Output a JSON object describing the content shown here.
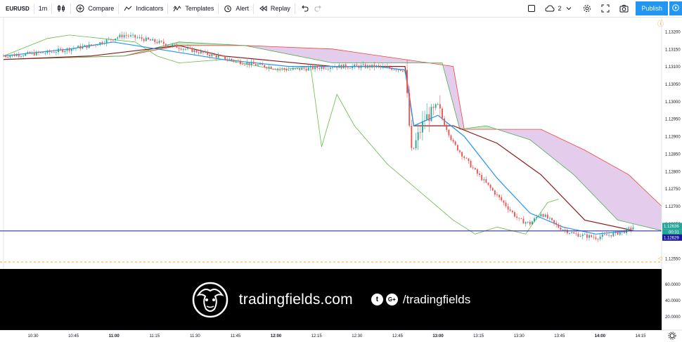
{
  "toolbar": {
    "symbol": "EURUSD",
    "interval": "1m",
    "compare": "Compare",
    "indicators": "Indicators",
    "templates": "Templates",
    "alert": "Alert",
    "replay": "Replay",
    "layout_count": "2",
    "publish": "Publish"
  },
  "price_axis": {
    "ticks": [
      "1.13200",
      "1.13150",
      "1.13100",
      "1.13050",
      "1.13000",
      "1.12950",
      "1.12900",
      "1.12850",
      "1.12800",
      "1.12750",
      "1.12700",
      "1.12650",
      "1.12550"
    ],
    "current_price": "1.12636",
    "countdown": "00:31",
    "line_price": "1.12629",
    "indicator_ticks": [
      "60.0000",
      "40.0000",
      "20.0000"
    ]
  },
  "time_axis": {
    "ticks": [
      "10:30",
      "10:45",
      "11:00",
      "11:15",
      "11:30",
      "11:45",
      "12:00",
      "12:15",
      "12:30",
      "12:45",
      "13:00",
      "13:15",
      "13:30",
      "13:45",
      "14:00",
      "14:15"
    ]
  },
  "banner": {
    "brand": "tradingfields.com",
    "twitter_glyph": "t",
    "gplus_glyph": "G+",
    "handle": "/tradingfields"
  },
  "colors": {
    "candle_up": "#26a69a",
    "candle_down": "#ef5350",
    "tenkan": "#2196f3",
    "kijun": "#8b1a1a",
    "chikou": "#66bb44",
    "span_a": "#4caf50",
    "span_b": "#f44336",
    "cloud_bear": "#e1c7ea",
    "cloud_bull": "#c8e6c9",
    "horizontal_line": "#3030a0",
    "price_badge": "#26a69a",
    "line_badge": "#1a1a9a",
    "accent": "#2196f3"
  },
  "chart_data": {
    "type": "candlestick",
    "symbol": "EURUSD",
    "interval": "1m",
    "ylim": [
      1.1252,
      1.1324
    ],
    "horizontal_line": 1.12629,
    "last_price": 1.12636,
    "x_ticks": [
      "10:30",
      "10:45",
      "11:00",
      "11:15",
      "11:30",
      "11:45",
      "12:00",
      "12:15",
      "12:30",
      "12:45",
      "13:00",
      "13:15",
      "13:30",
      "13:45",
      "14:00",
      "14:15"
    ],
    "close_anchors": [
      [
        0,
        1.1313
      ],
      [
        20,
        1.1314
      ],
      [
        40,
        1.1316
      ],
      [
        55,
        1.1319
      ],
      [
        70,
        1.1317
      ],
      [
        90,
        1.1314
      ],
      [
        110,
        1.1311
      ],
      [
        130,
        1.1309
      ],
      [
        150,
        1.131
      ],
      [
        170,
        1.131
      ],
      [
        183,
        1.1309
      ],
      [
        186,
        1.1285
      ],
      [
        192,
        1.1295
      ],
      [
        198,
        1.1298
      ],
      [
        205,
        1.1288
      ],
      [
        215,
        1.128
      ],
      [
        225,
        1.1273
      ],
      [
        235,
        1.1266
      ],
      [
        240,
        1.1265
      ],
      [
        245,
        1.1268
      ],
      [
        253,
        1.1264
      ],
      [
        260,
        1.1262
      ],
      [
        270,
        1.1261
      ],
      [
        278,
        1.1262
      ],
      [
        284,
        1.1263
      ],
      [
        287,
        1.1264
      ]
    ],
    "ichimoku": {
      "tenkan": [
        [
          0,
          1.1313
        ],
        [
          30,
          1.1315
        ],
        [
          50,
          1.1317
        ],
        [
          80,
          1.1314
        ],
        [
          100,
          1.1312
        ],
        [
          130,
          1.131
        ],
        [
          170,
          1.131
        ],
        [
          183,
          1.1309
        ],
        [
          187,
          1.1293
        ],
        [
          198,
          1.1296
        ],
        [
          210,
          1.129
        ],
        [
          225,
          1.1278
        ],
        [
          240,
          1.1268
        ],
        [
          255,
          1.1264
        ],
        [
          270,
          1.1262
        ],
        [
          287,
          1.1263
        ]
      ],
      "kijun": [
        [
          0,
          1.1312
        ],
        [
          40,
          1.1313
        ],
        [
          80,
          1.1316
        ],
        [
          100,
          1.1313
        ],
        [
          150,
          1.131
        ],
        [
          183,
          1.131
        ],
        [
          187,
          1.1293
        ],
        [
          205,
          1.1293
        ],
        [
          225,
          1.1288
        ],
        [
          245,
          1.1279
        ],
        [
          265,
          1.1266
        ],
        [
          287,
          1.1263
        ]
      ],
      "chikou": [
        [
          0,
          1.1313
        ],
        [
          20,
          1.1318
        ],
        [
          30,
          1.1319
        ],
        [
          45,
          1.1318
        ],
        [
          60,
          1.1317
        ],
        [
          70,
          1.1313
        ],
        [
          80,
          1.1311
        ],
        [
          100,
          1.1312
        ],
        [
          125,
          1.1309
        ],
        [
          140,
          1.131
        ],
        [
          145,
          1.1287
        ],
        [
          152,
          1.1302
        ],
        [
          160,
          1.1293
        ],
        [
          175,
          1.1282
        ],
        [
          190,
          1.1274
        ],
        [
          205,
          1.1266
        ],
        [
          215,
          1.1262
        ],
        [
          225,
          1.1264
        ],
        [
          238,
          1.1262
        ],
        [
          248,
          1.1271
        ],
        [
          253,
          1.1272
        ]
      ],
      "span_a": [
        [
          0,
          1.1312
        ],
        [
          55,
          1.1313
        ],
        [
          80,
          1.1317
        ],
        [
          110,
          1.1316
        ],
        [
          150,
          1.1311
        ],
        [
          200,
          1.1311
        ],
        [
          208,
          1.1292
        ],
        [
          220,
          1.1293
        ],
        [
          240,
          1.1289
        ],
        [
          260,
          1.1279
        ],
        [
          280,
          1.1266
        ],
        [
          300,
          1.1263
        ]
      ],
      "span_b": [
        [
          0,
          1.1312
        ],
        [
          55,
          1.1313
        ],
        [
          80,
          1.1316
        ],
        [
          110,
          1.1316
        ],
        [
          150,
          1.1315
        ],
        [
          205,
          1.131
        ],
        [
          210,
          1.1292
        ],
        [
          245,
          1.1292
        ],
        [
          265,
          1.1286
        ],
        [
          285,
          1.1279
        ],
        [
          300,
          1.127
        ]
      ]
    }
  }
}
